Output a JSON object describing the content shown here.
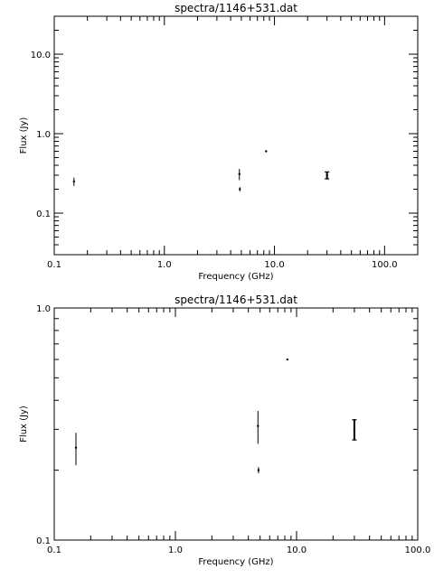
{
  "chart_data": [
    {
      "type": "scatter",
      "title": "spectra/1146+531.dat",
      "xlabel": "Frequency (GHz)",
      "ylabel": "Flux (Jy)",
      "x_scale": "log",
      "y_scale": "log",
      "xlim": [
        0.1,
        200
      ],
      "ylim": [
        0.03,
        30
      ],
      "x_tick_labels": [
        {
          "value": 0.1,
          "label": "0.1"
        },
        {
          "value": 1,
          "label": "1.0"
        },
        {
          "value": 10,
          "label": "10.0"
        },
        {
          "value": 100,
          "label": "100.0"
        }
      ],
      "y_tick_labels": [
        {
          "value": 0.1,
          "label": "0.1"
        },
        {
          "value": 1,
          "label": "1.0"
        },
        {
          "value": 10,
          "label": "10.0"
        }
      ],
      "points": [
        {
          "x": 0.151,
          "y": 0.25,
          "err": 0.03
        },
        {
          "x": 4.8,
          "y": 0.31,
          "err": 0.05
        },
        {
          "x": 4.85,
          "y": 0.2,
          "err": 0.012
        },
        {
          "x": 8.4,
          "y": 0.6,
          "err": 0.006
        },
        {
          "x": 30,
          "y": 0.3,
          "err": 0.03
        }
      ]
    },
    {
      "type": "scatter",
      "title": "spectra/1146+531.dat",
      "xlabel": "Frequency (GHz)",
      "ylabel": "Flux (Jy)",
      "x_scale": "log",
      "y_scale": "log",
      "xlim": [
        0.1,
        100
      ],
      "ylim": [
        0.1,
        1
      ],
      "x_tick_labels": [
        {
          "value": 0.1,
          "label": "0.1"
        },
        {
          "value": 1,
          "label": "1.0"
        },
        {
          "value": 10,
          "label": "10.0"
        },
        {
          "value": 100,
          "label": "100.0"
        }
      ],
      "y_tick_labels": [
        {
          "value": 0.1,
          "label": "0.1"
        },
        {
          "value": 1,
          "label": "1.0"
        }
      ],
      "points": [
        {
          "x": 0.151,
          "y": 0.25,
          "err": 0.04
        },
        {
          "x": 4.8,
          "y": 0.31,
          "err": 0.05
        },
        {
          "x": 4.85,
          "y": 0.2,
          "err": 0.006
        },
        {
          "x": 8.4,
          "y": 0.6,
          "err": 0.003
        },
        {
          "x": 30,
          "y": 0.3,
          "err": 0.03
        }
      ]
    }
  ]
}
